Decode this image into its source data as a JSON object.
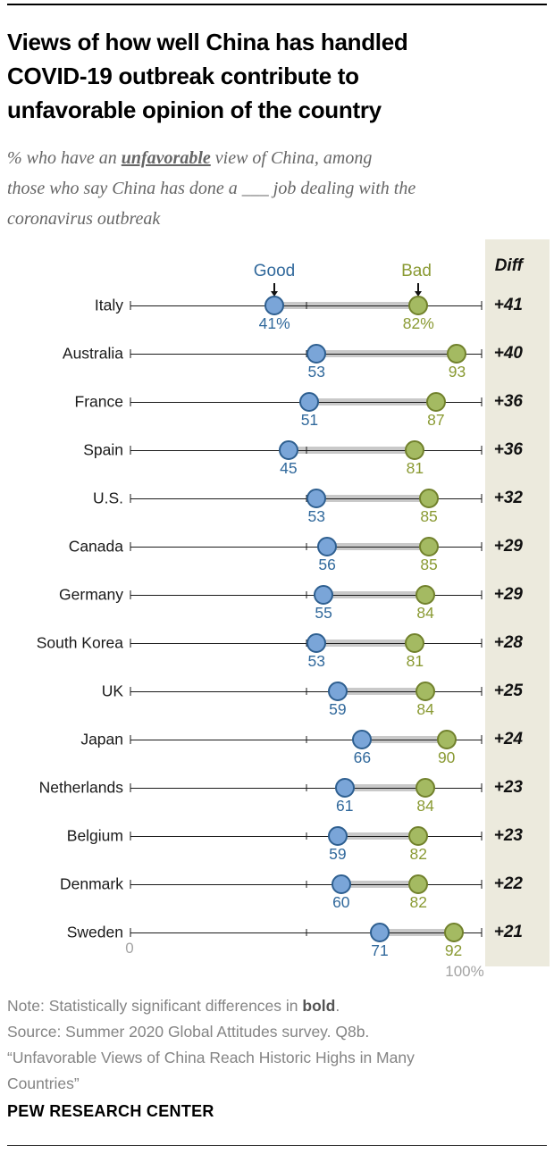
{
  "header": {
    "title_lines": [
      "Views of how well China has handled",
      "COVID-19 outbreak contribute to",
      "unfavorable opinion of the country"
    ],
    "subtitle": {
      "line1_prefix": "% who have an ",
      "line1_emphasis": "unfavorable",
      "line1_suffix": " view of China, among",
      "line2": "those who say China has done a ___ job dealing with the",
      "line3": "coronavirus outbreak"
    }
  },
  "chart_data": {
    "type": "dumbbell",
    "title": "Views of how well China has handled COVID-19 outbreak contribute to unfavorable opinion of the country",
    "legend": {
      "good_label": "Good",
      "bad_label": "Bad"
    },
    "diff_header": "Diff",
    "axis": {
      "min": 0,
      "max": 100,
      "min_label": "0",
      "max_label": "100%",
      "ticks": [
        0,
        50,
        100
      ]
    },
    "rows": [
      {
        "country": "Italy",
        "good": 41,
        "bad": 82,
        "good_label": "41%",
        "bad_label": "82%",
        "diff": "+41"
      },
      {
        "country": "Australia",
        "good": 53,
        "bad": 93,
        "good_label": "53",
        "bad_label": "93",
        "diff": "+40"
      },
      {
        "country": "France",
        "good": 51,
        "bad": 87,
        "good_label": "51",
        "bad_label": "87",
        "diff": "+36"
      },
      {
        "country": "Spain",
        "good": 45,
        "bad": 81,
        "good_label": "45",
        "bad_label": "81",
        "diff": "+36"
      },
      {
        "country": "U.S.",
        "good": 53,
        "bad": 85,
        "good_label": "53",
        "bad_label": "85",
        "diff": "+32"
      },
      {
        "country": "Canada",
        "good": 56,
        "bad": 85,
        "good_label": "56",
        "bad_label": "85",
        "diff": "+29"
      },
      {
        "country": "Germany",
        "good": 55,
        "bad": 84,
        "good_label": "55",
        "bad_label": "84",
        "diff": "+29"
      },
      {
        "country": "South Korea",
        "good": 53,
        "bad": 81,
        "good_label": "53",
        "bad_label": "81",
        "diff": "+28"
      },
      {
        "country": "UK",
        "good": 59,
        "bad": 84,
        "good_label": "59",
        "bad_label": "84",
        "diff": "+25"
      },
      {
        "country": "Japan",
        "good": 66,
        "bad": 90,
        "good_label": "66",
        "bad_label": "90",
        "diff": "+24"
      },
      {
        "country": "Netherlands",
        "good": 61,
        "bad": 84,
        "good_label": "61",
        "bad_label": "84",
        "diff": "+23"
      },
      {
        "country": "Belgium",
        "good": 59,
        "bad": 82,
        "good_label": "59",
        "bad_label": "82",
        "diff": "+23"
      },
      {
        "country": "Denmark",
        "good": 60,
        "bad": 82,
        "good_label": "60",
        "bad_label": "82",
        "diff": "+22"
      },
      {
        "country": "Sweden",
        "good": 71,
        "bad": 92,
        "good_label": "71",
        "bad_label": "92",
        "diff": "+21"
      }
    ],
    "colors": {
      "good-fill": "#7aa5d8",
      "good-stroke": "#2e5f90",
      "good-text": "#31699c",
      "bad-fill": "#a4ba62",
      "bad-stroke": "#71812c",
      "bad-text": "#8a9a33",
      "bar": "#c9c9c9",
      "diff-bg": "#eceadd",
      "axis": "#1a1a1a"
    },
    "layout_hints": {
      "grid": false,
      "legend_position": "top",
      "diff_column": "right"
    }
  },
  "footer": {
    "note_prefix": "Note: Statistically significant differences in ",
    "note_bold": "bold",
    "note_suffix": ".",
    "source": "Source: Summer 2020 Global Attitudes survey. Q8b.",
    "report_title": "“Unfavorable Views of China Reach Historic Highs in Many Countries”",
    "brand": "PEW RESEARCH CENTER"
  }
}
